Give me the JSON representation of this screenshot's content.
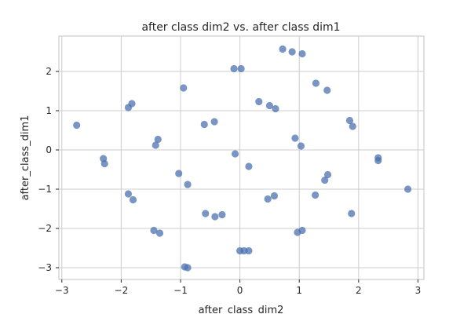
{
  "chart_data": {
    "type": "scatter",
    "title": "after class dim2 vs. after class dim1",
    "xlabel": "after_class_dim2",
    "ylabel": "after_class_dim1",
    "xlim": [
      -3.05,
      3.1
    ],
    "ylim": [
      -3.3,
      2.9
    ],
    "xticks": [
      -3,
      -2,
      -1,
      0,
      1,
      2,
      3
    ],
    "yticks": [
      -3,
      -2,
      -1,
      0,
      1,
      2
    ],
    "grid": true,
    "marker_color": "#4c72b0",
    "points": [
      {
        "x": -2.75,
        "y": 0.63
      },
      {
        "x": -2.3,
        "y": -0.22
      },
      {
        "x": -2.28,
        "y": -0.35
      },
      {
        "x": -1.88,
        "y": 1.08
      },
      {
        "x": -1.82,
        "y": 1.18
      },
      {
        "x": -1.88,
        "y": -1.12
      },
      {
        "x": -1.8,
        "y": -1.27
      },
      {
        "x": -1.42,
        "y": 0.12
      },
      {
        "x": -1.38,
        "y": 0.27
      },
      {
        "x": -1.45,
        "y": -2.05
      },
      {
        "x": -1.35,
        "y": -2.12
      },
      {
        "x": -1.03,
        "y": -0.6
      },
      {
        "x": -0.88,
        "y": -0.88
      },
      {
        "x": -0.95,
        "y": 1.58
      },
      {
        "x": -0.93,
        "y": -2.98
      },
      {
        "x": -0.88,
        "y": -3.0
      },
      {
        "x": -0.6,
        "y": 0.65
      },
      {
        "x": -0.58,
        "y": -1.62
      },
      {
        "x": -0.43,
        "y": 0.72
      },
      {
        "x": -0.42,
        "y": -1.7
      },
      {
        "x": -0.3,
        "y": -1.65
      },
      {
        "x": -0.1,
        "y": 2.07
      },
      {
        "x": 0.02,
        "y": 2.07
      },
      {
        "x": -0.08,
        "y": -0.1
      },
      {
        "x": 0.15,
        "y": -0.42
      },
      {
        "x": 0.0,
        "y": -2.57
      },
      {
        "x": 0.07,
        "y": -2.57
      },
      {
        "x": 0.15,
        "y": -2.57
      },
      {
        "x": 0.32,
        "y": 1.23
      },
      {
        "x": 0.5,
        "y": 1.13
      },
      {
        "x": 0.6,
        "y": 1.05
      },
      {
        "x": 0.47,
        "y": -1.25
      },
      {
        "x": 0.58,
        "y": -1.17
      },
      {
        "x": 0.72,
        "y": 2.57
      },
      {
        "x": 0.88,
        "y": 2.5
      },
      {
        "x": 1.05,
        "y": 2.45
      },
      {
        "x": 0.93,
        "y": 0.3
      },
      {
        "x": 1.03,
        "y": 0.1
      },
      {
        "x": 0.97,
        "y": -2.1
      },
      {
        "x": 1.05,
        "y": -2.05
      },
      {
        "x": 1.28,
        "y": 1.7
      },
      {
        "x": 1.47,
        "y": 1.52
      },
      {
        "x": 1.27,
        "y": -1.15
      },
      {
        "x": 1.43,
        "y": -0.77
      },
      {
        "x": 1.48,
        "y": -0.63
      },
      {
        "x": 1.85,
        "y": 0.75
      },
      {
        "x": 1.9,
        "y": 0.6
      },
      {
        "x": 1.88,
        "y": -1.62
      },
      {
        "x": 2.33,
        "y": -0.2
      },
      {
        "x": 2.33,
        "y": -0.27
      },
      {
        "x": 2.83,
        "y": -1.0
      }
    ]
  }
}
